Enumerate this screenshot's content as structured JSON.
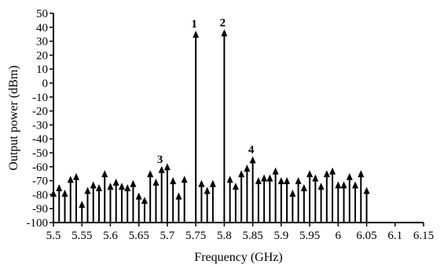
{
  "chart_data": {
    "type": "scatter",
    "style": "stem-with-arrowheads",
    "xlabel": "Frequency (GHz)",
    "ylabel": "Output power (dBm)",
    "xlim": [
      5.5,
      6.15
    ],
    "ylim": [
      -100,
      50
    ],
    "x_ticks": [
      "5.5",
      "5.55",
      "5.6",
      "5.65",
      "5.7",
      "5.75",
      "5.8",
      "5.85",
      "5.9",
      "5.95",
      "6",
      "6.05",
      "6.1",
      "6.15"
    ],
    "x_tick_values": [
      5.5,
      5.55,
      5.6,
      5.65,
      5.7,
      5.75,
      5.8,
      5.85,
      5.9,
      5.95,
      6.0,
      6.05,
      6.1,
      6.15
    ],
    "y_ticks": [
      "50",
      "40",
      "30",
      "20",
      "10",
      "0",
      "-10",
      "-20",
      "-30",
      "-40",
      "-50",
      "-60",
      "-70",
      "-80",
      "-90",
      "-100"
    ],
    "y_tick_values": [
      50,
      40,
      30,
      20,
      10,
      0,
      -10,
      -20,
      -30,
      -40,
      -50,
      -60,
      -70,
      -80,
      -90,
      -100
    ],
    "grid": false,
    "stem_color": "#000000",
    "points": [
      {
        "x": 5.5,
        "y": -77
      },
      {
        "x": 5.51,
        "y": -73
      },
      {
        "x": 5.52,
        "y": -77
      },
      {
        "x": 5.53,
        "y": -67
      },
      {
        "x": 5.54,
        "y": -65
      },
      {
        "x": 5.55,
        "y": -85
      },
      {
        "x": 5.56,
        "y": -75
      },
      {
        "x": 5.57,
        "y": -71
      },
      {
        "x": 5.58,
        "y": -73
      },
      {
        "x": 5.59,
        "y": -63
      },
      {
        "x": 5.6,
        "y": -72
      },
      {
        "x": 5.61,
        "y": -69
      },
      {
        "x": 5.62,
        "y": -72
      },
      {
        "x": 5.63,
        "y": -73
      },
      {
        "x": 5.64,
        "y": -70
      },
      {
        "x": 5.65,
        "y": -79
      },
      {
        "x": 5.66,
        "y": -82
      },
      {
        "x": 5.67,
        "y": -63
      },
      {
        "x": 5.68,
        "y": -69
      },
      {
        "x": 5.69,
        "y": -60
      },
      {
        "x": 5.7,
        "y": -58
      },
      {
        "x": 5.71,
        "y": -68
      },
      {
        "x": 5.72,
        "y": -79
      },
      {
        "x": 5.73,
        "y": -67
      },
      {
        "x": 5.75,
        "y": 37
      },
      {
        "x": 5.76,
        "y": -70
      },
      {
        "x": 5.77,
        "y": -75
      },
      {
        "x": 5.78,
        "y": -70
      },
      {
        "x": 5.8,
        "y": 38
      },
      {
        "x": 5.81,
        "y": -67
      },
      {
        "x": 5.82,
        "y": -72
      },
      {
        "x": 5.83,
        "y": -63
      },
      {
        "x": 5.84,
        "y": -59
      },
      {
        "x": 5.85,
        "y": -53
      },
      {
        "x": 5.86,
        "y": -68
      },
      {
        "x": 5.87,
        "y": -66
      },
      {
        "x": 5.88,
        "y": -66
      },
      {
        "x": 5.89,
        "y": -61
      },
      {
        "x": 5.9,
        "y": -68
      },
      {
        "x": 5.91,
        "y": -68
      },
      {
        "x": 5.92,
        "y": -77
      },
      {
        "x": 5.93,
        "y": -68
      },
      {
        "x": 5.94,
        "y": -73
      },
      {
        "x": 5.95,
        "y": -63
      },
      {
        "x": 5.96,
        "y": -66
      },
      {
        "x": 5.97,
        "y": -72
      },
      {
        "x": 5.98,
        "y": -63
      },
      {
        "x": 5.99,
        "y": -61
      },
      {
        "x": 6.0,
        "y": -71
      },
      {
        "x": 6.01,
        "y": -71
      },
      {
        "x": 6.02,
        "y": -65
      },
      {
        "x": 6.03,
        "y": -71
      },
      {
        "x": 6.04,
        "y": -63
      },
      {
        "x": 6.05,
        "y": -75
      }
    ],
    "annotations": [
      {
        "text": "1",
        "x": 5.75,
        "y": 37
      },
      {
        "text": "2",
        "x": 5.8,
        "y": 38
      },
      {
        "text": "3",
        "x": 5.69,
        "y": -60
      },
      {
        "text": "4",
        "x": 5.85,
        "y": -53
      }
    ]
  }
}
